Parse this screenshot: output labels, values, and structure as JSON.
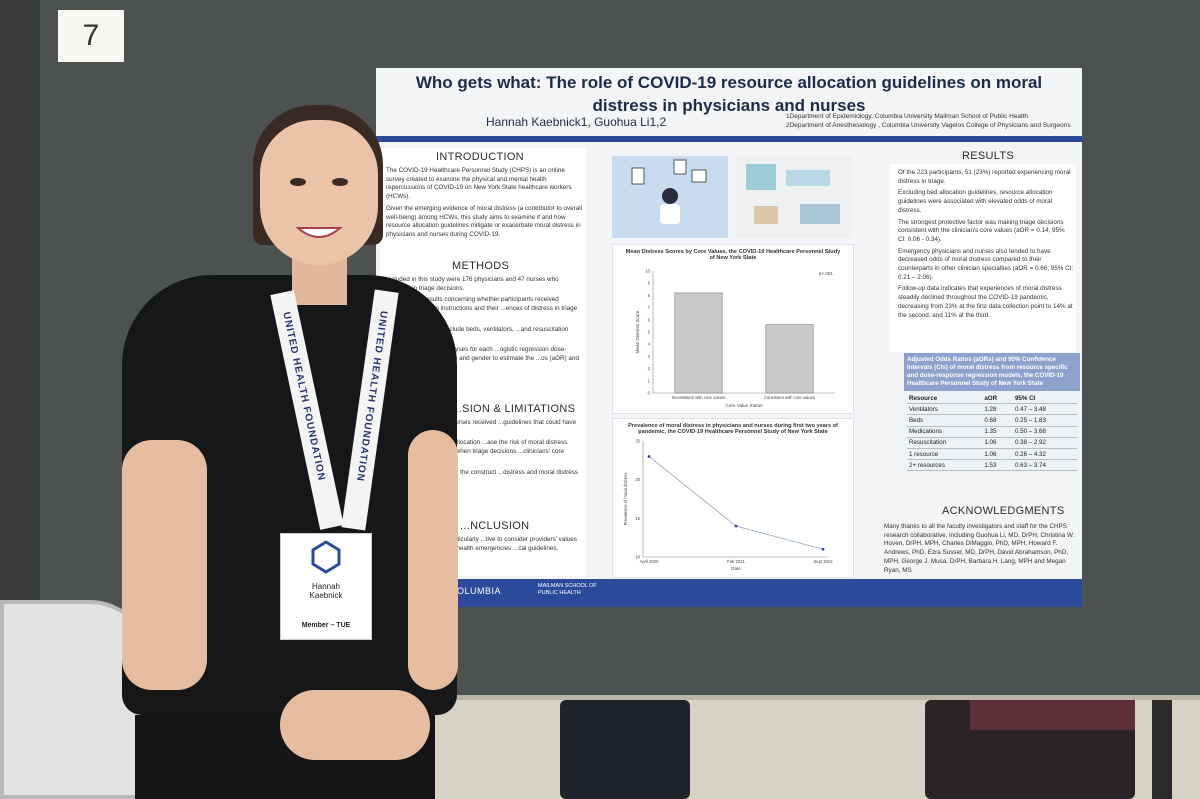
{
  "booth": {
    "number": "7"
  },
  "poster": {
    "title": "Who gets what: The role of COVID-19 resource allocation guidelines on moral distress in physicians and nurses",
    "authors": "Hannah Kaebnick1, Guohua Li1,2",
    "affiliations": [
      "1Department of Epidemiology, Columbia University Mailman School of Public Health",
      "2Department of Anesthesiology , Columbia University Vagelos College of Physicians and Surgeons"
    ],
    "sections": {
      "introduction": {
        "heading": "INTRODUCTION",
        "bullets": [
          "The COVID-19 Healthcare Personnel Study (CHPS) is an online survey created to examine the physical and mental health repercussions of COVID-19 on New York State healthcare workers (HCWs).",
          "Given the emerging evidence of moral distress (a contributor to overall well-being) among HCWs, this study aims to examine if and how resource allocation guidelines mitigate or exacerbate moral distress in physicians and nurses during COVID-19."
        ]
      },
      "methods": {
        "heading": "METHODS",
        "bullets": [
          "Included in this study were 176 physicians and 47 nurses who engaged in triage decisions.",
          "We analyzed results concerning whether participants received resource allocation instructions and their ...ences of distress in triage situations.",
          "...sources of interest include beds, ventilators, ...and resuscitation efforts.",
          "...logistic regression analyses for each ...ogistic regression dose-response model ...for age and gender to estimate the ...os (aOR) and 95% confidence intervals"
        ]
      },
      "discussion": {
        "heading": "...SION & LIMITATIONS",
        "bullets": [
          "...many physicians and nurses received ...guidelines that could have exacerbated ...distress.",
          "...suggest that resource allocation ...ase the risk of moral distress among ...age, especially when triage decisions ...clinicians' core values.",
          "...s are small. Additionally, the construct ...distress and moral distress needs more"
        ]
      },
      "conclusion": {
        "heading": "...NCLUSION",
        "bullets": [
          "...lth crisis, HCWs are particularly ...tive to consider providers' values and ...planning for public health emergencies ...cal guidelines."
        ]
      },
      "results": {
        "heading": "RESULTS",
        "bullets": [
          "Of the 223 participants, 51 (23%) reported experiencing moral distress in triage.",
          "Excluding bed allocation guidelines, resource allocation guidelines were associated with elevated odds of moral distress.",
          "The strongest protective factor was making triage decisions consistent with the clinician's core values (aOR = 0.14; 95% CI: 0.06 - 0.34).",
          "Emergency physicians and nurses also tended to have decreased odds of moral distress compared to their counterparts in other clinician specialties (aOR = 0.66; 95% CI: 0.21 – 2.06).",
          "Follow-up data indicates that experiences of moral distress steadily declined throughout the COVID-19 pandemic, decreasing from 23% at the first data collection point to 14% at the second, and 11% at the third."
        ]
      },
      "acknowledgments": {
        "heading": "ACKNOWLEDGMENTS",
        "text": "Many thanks to all the faculty investigators and staff for the CHPS research collaborative, including Guohua Li, MD, DrPH, Christina W. Hoven, DrPH, MPH, Charles DiMaggio, PhD, MPH, Howard F. Andrews, PhD, Ezra Susser, MD, DrPH, David Abrahamson, PhD, MPH, George J. Musa, DrPH, Barbara H. Lang, MPH and Megan Ryan, MS"
      }
    },
    "table": {
      "caption": "Adjusted Odds Ratios (aORs) and 95% Confidence Intervals (CIs) of moral distress from resource specific and dose-response regression models, the COVID-19 Healthcare Personnel Study of New York State",
      "columns": [
        "Resource",
        "aOR",
        "95% CI"
      ],
      "rows": [
        [
          "Ventilators",
          "1.28",
          "0.47 – 3.48"
        ],
        [
          "Beds",
          "0.68",
          "0.25 – 1.83"
        ],
        [
          "Medications",
          "1.35",
          "0.50 – 3.68"
        ],
        [
          "Resuscitation",
          "1.06",
          "0.38 – 2.92"
        ],
        [
          "1 resource",
          "1.06",
          "0.26 – 4.32"
        ],
        [
          "2+ resources",
          "1.53",
          "0.63 – 3.74"
        ]
      ]
    },
    "footer": {
      "logo_left": "COLUMBIA",
      "logo_right": "MAILMAN SCHOOL OF PUBLIC HEALTH"
    }
  },
  "chart_data": [
    {
      "type": "bar",
      "title": "Mean Distress Scores by Core Values, the COVID-19 Healthcare Personnel Study of New York State",
      "categories": [
        "Inconsistent with core values",
        "Consistent with core values"
      ],
      "values": [
        8.2,
        5.6
      ],
      "ylim": [
        0,
        10
      ],
      "yticks": [
        "0",
        "1",
        "2",
        "3",
        "4",
        "5",
        "6",
        "7",
        "8",
        "9",
        "10"
      ],
      "xlabel": "Core Value Status",
      "ylabel": "Mean Distress Score",
      "annotation": "p<.001",
      "bar_color": "#c8cacc"
    },
    {
      "type": "line",
      "title": "Prevalence of moral distress in physicians and nurses during first two years of pandemic, the COVID-19 Healthcare Personnel Study of New York State",
      "x": [
        "April 2020",
        "Feb 2021",
        "Sept 2022"
      ],
      "values": [
        23,
        14,
        11
      ],
      "ylim": [
        10,
        25
      ],
      "yticks": [
        "10",
        "15",
        "20",
        "25"
      ],
      "xlabel": "Date",
      "ylabel": "Prevalence of moral distress",
      "line_color": "#8da2cc"
    }
  ],
  "person": {
    "lanyard_text": "UNITED HEALTH FOUNDATION",
    "badge_name": "Hannah\nKaebnick",
    "badge_tag": "Member – TUE"
  }
}
